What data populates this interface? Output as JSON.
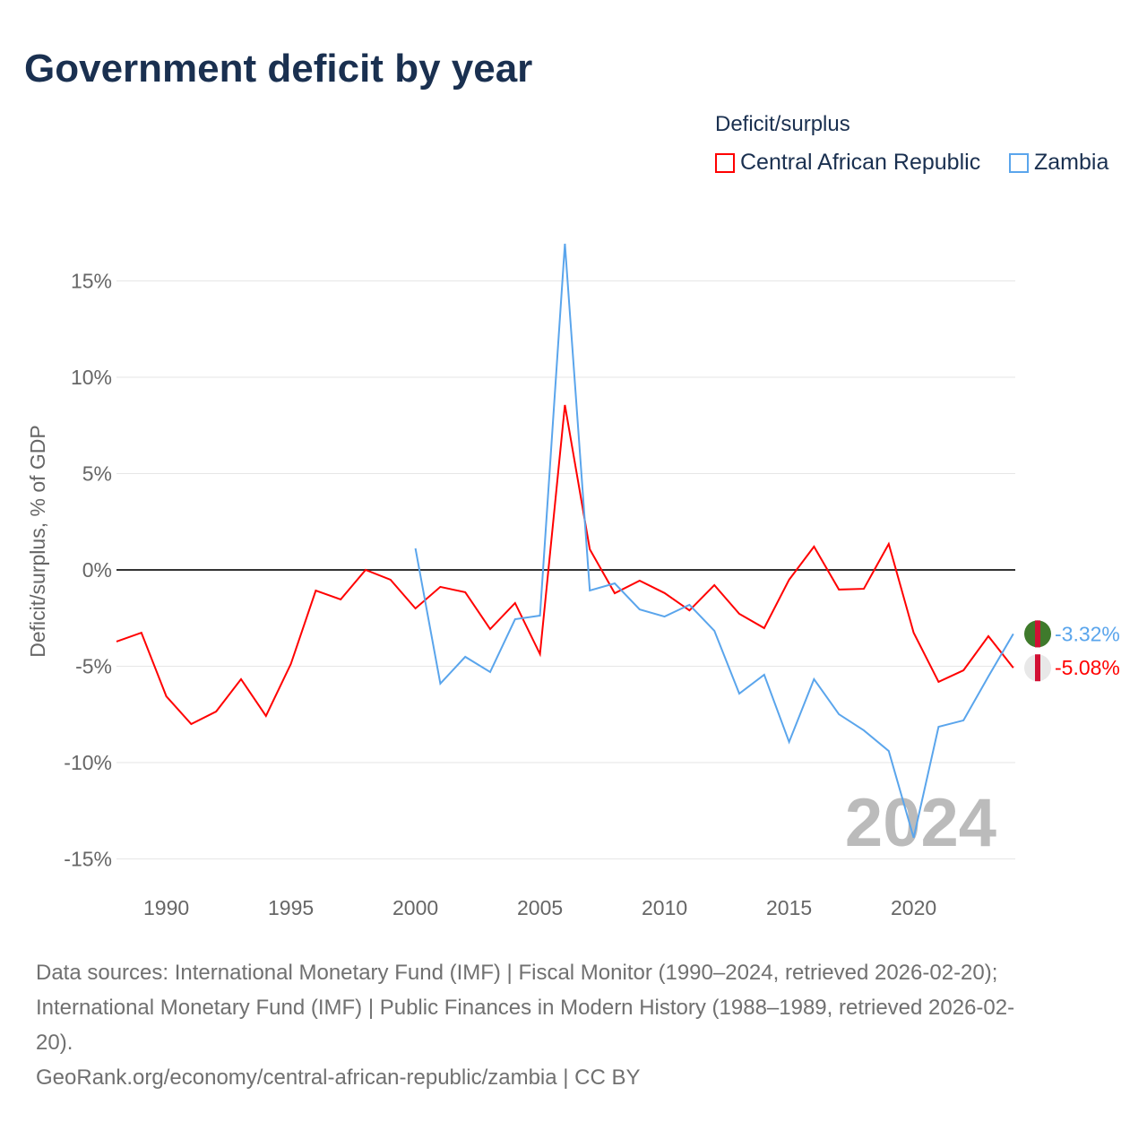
{
  "title": "Government deficit by year",
  "legend": {
    "title": "Deficit/surplus"
  },
  "watermark_year": "2024",
  "sources": {
    "line1": "Data sources: International Monetary Fund (IMF) | Fiscal Monitor (1990–2024, retrieved 2026-02-20);",
    "line2": "International Monetary Fund (IMF) | Public Finances in Modern History (1988–1989, retrieved 2026-02-",
    "line3": "20).",
    "line4": "GeoRank.org/economy/central-african-republic/zambia | CC BY"
  },
  "chart_data": {
    "type": "line",
    "title": "Government deficit by year",
    "ylabel": "Deficit/surplus, % of GDP",
    "xlabel": "",
    "ylim": [
      -16,
      18
    ],
    "xlim": [
      1988,
      2024
    ],
    "yticks": [
      {
        "v": 15,
        "label": "15%"
      },
      {
        "v": 10,
        "label": "10%"
      },
      {
        "v": 5,
        "label": "5%"
      },
      {
        "v": 0,
        "label": "0%"
      },
      {
        "v": -5,
        "label": "-5%"
      },
      {
        "v": -10,
        "label": "-10%"
      },
      {
        "v": -15,
        "label": "-15%"
      }
    ],
    "xticks": [
      1990,
      1995,
      2000,
      2005,
      2010,
      2015,
      2020
    ],
    "legend_position": "top-right",
    "series": [
      {
        "name": "Central African Republic",
        "color": "#ff0000",
        "end_label": "-5.08%",
        "x": [
          1988,
          1989,
          1990,
          1991,
          1992,
          1993,
          1994,
          1995,
          1996,
          1997,
          1998,
          1999,
          2000,
          2001,
          2002,
          2003,
          2004,
          2005,
          2006,
          2007,
          2008,
          2009,
          2010,
          2011,
          2012,
          2013,
          2014,
          2015,
          2016,
          2017,
          2018,
          2019,
          2020,
          2021,
          2022,
          2023,
          2024
        ],
        "values": [
          -3.72,
          -3.26,
          -6.56,
          -8.0,
          -7.35,
          -5.67,
          -7.58,
          -4.88,
          -1.07,
          -1.53,
          0.0,
          -0.51,
          -2.0,
          -0.88,
          -1.16,
          -3.07,
          -1.72,
          -4.37,
          8.56,
          1.07,
          -1.21,
          -0.56,
          -1.2,
          -2.1,
          -0.79,
          -2.28,
          -3.02,
          -0.51,
          1.21,
          -1.02,
          -0.98,
          1.35,
          -3.26,
          -5.81,
          -5.21,
          -3.44,
          -5.08
        ]
      },
      {
        "name": "Zambia",
        "color": "#5aa5ec",
        "end_label": "-3.32%",
        "x": [
          2000,
          2001,
          2002,
          2003,
          2004,
          2005,
          2006,
          2007,
          2008,
          2009,
          2010,
          2011,
          2012,
          2013,
          2014,
          2015,
          2016,
          2017,
          2018,
          2019,
          2020,
          2021,
          2022,
          2023,
          2024
        ],
        "values": [
          1.12,
          -5.9,
          -4.51,
          -5.3,
          -2.56,
          -2.37,
          16.93,
          -1.07,
          -0.7,
          -2.05,
          -2.42,
          -1.81,
          -3.16,
          -6.42,
          -5.44,
          -8.93,
          -5.67,
          -7.49,
          -8.33,
          -9.4,
          -13.9,
          -8.14,
          -7.81,
          -5.53,
          -3.32
        ]
      }
    ]
  }
}
